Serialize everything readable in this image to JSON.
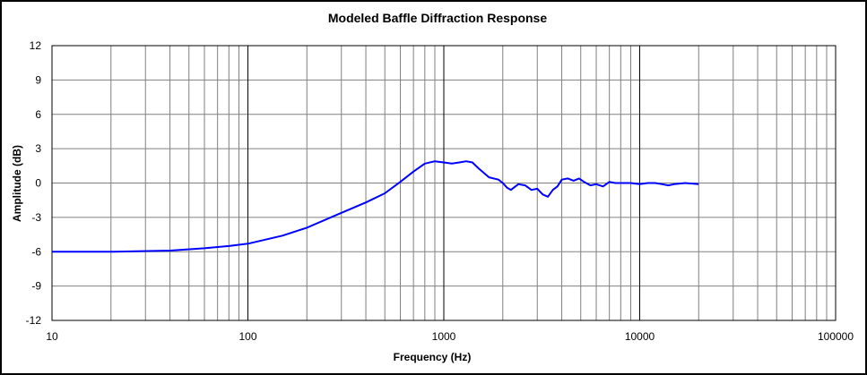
{
  "chart_data": {
    "type": "line",
    "title": "Modeled Baffle Diffraction Response",
    "xlabel": "Frequency (Hz)",
    "ylabel": "Amplitude (dB)",
    "x_scale": "log",
    "xlim": [
      10,
      100000
    ],
    "ylim": [
      -12,
      12
    ],
    "x_ticks": [
      10,
      100,
      1000,
      10000,
      100000
    ],
    "x_tick_labels": [
      "10",
      "100",
      "1000",
      "10000",
      "100000"
    ],
    "y_ticks": [
      12,
      9,
      6,
      3,
      0,
      -3,
      -6,
      -9,
      -12
    ],
    "y_tick_labels": [
      "12",
      "9",
      "6",
      "3",
      "0",
      "-3",
      "-6",
      "-9",
      "-12"
    ],
    "grid": true,
    "line_color": "#0000ff",
    "series": [
      {
        "x": [
          10,
          20,
          40,
          60,
          80,
          100,
          150,
          200,
          300,
          400,
          500,
          600,
          700,
          800,
          900,
          1000,
          1100,
          1200,
          1300,
          1400,
          1500,
          1700,
          1900,
          2000,
          2100,
          2200,
          2400,
          2600,
          2800,
          3000,
          3200,
          3400,
          3600,
          3800,
          4000,
          4300,
          4600,
          4900,
          5200,
          5600,
          6000,
          6500,
          7000,
          7500,
          8000,
          9000,
          10000,
          11000,
          12000,
          13000,
          14000,
          15000,
          17000,
          20000
        ],
        "y": [
          -6.0,
          -6.0,
          -5.9,
          -5.7,
          -5.5,
          -5.3,
          -4.6,
          -3.9,
          -2.6,
          -1.7,
          -0.9,
          0.1,
          1.0,
          1.7,
          1.9,
          1.8,
          1.7,
          1.8,
          1.9,
          1.8,
          1.3,
          0.5,
          0.3,
          0.0,
          -0.4,
          -0.6,
          -0.1,
          -0.2,
          -0.6,
          -0.5,
          -1.0,
          -1.2,
          -0.6,
          -0.3,
          0.3,
          0.4,
          0.2,
          0.4,
          0.1,
          -0.2,
          -0.1,
          -0.3,
          0.1,
          0.0,
          0.0,
          0.0,
          -0.1,
          0.0,
          0.0,
          -0.1,
          -0.2,
          -0.1,
          0.0,
          -0.1
        ]
      }
    ]
  }
}
